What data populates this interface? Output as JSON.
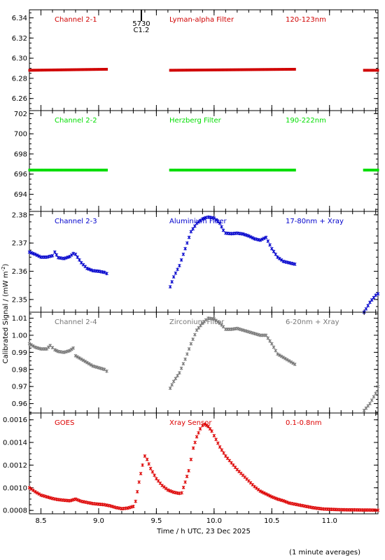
{
  "figure": {
    "ylabel": "Calibrated Signal / (mW m",
    "ylabel_sup": "-2",
    "ylabel_end": ")",
    "xlabel": "Time / h UTC, 23 Dec 2025",
    "footnote": "(1 minute averages)",
    "flare_marker": {
      "time": 9.37,
      "line1": "5730",
      "line2": "C1.2"
    }
  },
  "chart_data": [
    {
      "type": "scatter",
      "panel": "Channel 2-1",
      "labels": [
        "Channel 2-1",
        "Lyman-alpha Filter",
        "120-123nm"
      ],
      "color": "#d00000",
      "marker": "dense",
      "xlim": [
        8.4,
        11.42
      ],
      "ylim": [
        6.248,
        6.348
      ],
      "yticks": [
        6.26,
        6.28,
        6.3,
        6.32,
        6.34
      ],
      "ytick_labels": [
        "6.26",
        "6.28",
        "6.30",
        "6.32",
        "6.34"
      ],
      "series": [
        {
          "x": [
            8.4,
            9.07
          ],
          "y": [
            6.288,
            6.289
          ]
        },
        {
          "x": [
            9.62,
            10.7
          ],
          "y": [
            6.288,
            6.289
          ]
        },
        {
          "x": [
            11.3,
            11.42
          ],
          "y": [
            6.288,
            6.288
          ]
        }
      ]
    },
    {
      "type": "scatter",
      "panel": "Channel 2-2",
      "labels": [
        "Channel 2-2",
        "Herzberg Filter",
        "190-222nm"
      ],
      "color": "#00dd00",
      "marker": "dense",
      "xlim": [
        8.4,
        11.42
      ],
      "ylim": [
        692.3,
        702.3
      ],
      "yticks": [
        694,
        696,
        698,
        700,
        702
      ],
      "ytick_labels": [
        "694",
        "696",
        "698",
        "700",
        "702"
      ],
      "series": [
        {
          "x": [
            8.4,
            9.07
          ],
          "y": [
            696.4,
            696.4
          ]
        },
        {
          "x": [
            9.62,
            10.7
          ],
          "y": [
            696.4,
            696.4
          ]
        },
        {
          "x": [
            11.3,
            11.42
          ],
          "y": [
            696.4,
            696.4
          ]
        }
      ]
    },
    {
      "type": "scatter",
      "panel": "Channel 2-3",
      "labels": [
        "Channel 2-3",
        "Aluminium Filter",
        "17-80nm + Xray"
      ],
      "color": "#0000cc",
      "marker": "x",
      "xlim": [
        8.4,
        11.42
      ],
      "ylim": [
        2.3455,
        2.3812
      ],
      "yticks": [
        2.35,
        2.36,
        2.37,
        2.38
      ],
      "ytick_labels": [
        "2.35",
        "2.36",
        "2.37",
        "2.38"
      ],
      "series": [
        {
          "x": [
            8.4,
            8.45,
            8.5,
            8.55,
            8.6,
            8.62,
            8.65,
            8.7,
            8.75,
            8.78,
            8.8,
            8.85,
            8.9,
            8.95,
            9.0,
            9.05,
            9.07
          ],
          "y": [
            2.3668,
            2.366,
            2.365,
            2.365,
            2.3655,
            2.3668,
            2.3648,
            2.3645,
            2.3652,
            2.3663,
            2.366,
            2.363,
            2.361,
            2.3602,
            2.36,
            2.3596,
            2.3592
          ]
        },
        {
          "x": [
            9.62,
            9.65,
            9.7,
            9.75,
            9.8,
            9.85,
            9.9,
            9.93,
            9.95,
            10.0,
            10.05,
            10.08,
            10.1,
            10.15,
            10.2,
            10.25,
            10.3,
            10.35,
            10.4,
            10.45,
            10.5,
            10.55,
            10.6,
            10.65,
            10.7
          ],
          "y": [
            2.3545,
            2.358,
            2.362,
            2.368,
            2.374,
            2.377,
            2.3785,
            2.379,
            2.3792,
            2.3788,
            2.377,
            2.3745,
            2.3735,
            2.3733,
            2.3735,
            2.3732,
            2.3725,
            2.3715,
            2.371,
            2.372,
            2.368,
            2.365,
            2.3635,
            2.363,
            2.3625
          ]
        },
        {
          "x": [
            11.3,
            11.35,
            11.4,
            11.42
          ],
          "y": [
            2.3455,
            2.349,
            2.3515,
            2.352
          ]
        }
      ]
    },
    {
      "type": "scatter",
      "panel": "Channel 2-4",
      "labels": [
        "Channel 2-4",
        "Zirconium Filter",
        "6-20nm + Xray"
      ],
      "color": "#777777",
      "marker": "x",
      "xlim": [
        8.4,
        11.42
      ],
      "ylim": [
        0.9545,
        1.0135
      ],
      "yticks": [
        0.96,
        0.97,
        0.98,
        0.99,
        1.0,
        1.01
      ],
      "ytick_labels": [
        "0.96",
        "0.97",
        "0.98",
        "0.99",
        "1.00",
        "1.01"
      ],
      "series": [
        {
          "x": [
            8.4,
            8.45,
            8.5,
            8.55,
            8.58,
            8.62,
            8.65,
            8.7,
            8.75,
            8.78,
            8.8,
            8.85,
            8.9,
            8.95,
            9.0,
            9.05,
            9.07
          ],
          "y": [
            0.995,
            0.993,
            0.992,
            0.992,
            0.994,
            0.9915,
            0.9905,
            0.99,
            0.991,
            0.9925,
            0.988,
            0.986,
            0.984,
            0.982,
            0.981,
            0.98,
            0.979
          ]
        },
        {
          "x": [
            9.62,
            9.65,
            9.7,
            9.75,
            9.8,
            9.85,
            9.9,
            9.93,
            9.95,
            10.0,
            10.05,
            10.08,
            10.1,
            10.15,
            10.2,
            10.25,
            10.3,
            10.35,
            10.4,
            10.45,
            10.5,
            10.55,
            10.6,
            10.65,
            10.7
          ],
          "y": [
            0.969,
            0.973,
            0.978,
            0.986,
            0.995,
            1.003,
            1.007,
            1.009,
            1.01,
            1.0095,
            1.007,
            1.005,
            1.0035,
            1.0035,
            1.004,
            1.003,
            1.002,
            1.001,
            1.0,
            1.0,
            0.995,
            0.989,
            0.987,
            0.985,
            0.983
          ]
        },
        {
          "x": [
            11.3,
            11.35,
            11.4,
            11.42
          ],
          "y": [
            0.956,
            0.96,
            0.966,
            0.97
          ]
        }
      ]
    },
    {
      "type": "scatter",
      "panel": "GOES",
      "labels": [
        "GOES",
        "Xray Sensor",
        "0.1-0.8nm"
      ],
      "color": "#dd0000",
      "marker": "x",
      "xlim": [
        8.4,
        11.42
      ],
      "ylim": [
        0.00077,
        0.00166
      ],
      "yticks": [
        0.0008,
        0.001,
        0.0012,
        0.0014,
        0.0016
      ],
      "ytick_labels": [
        "0.0008",
        "0.0010",
        "0.0012",
        "0.0014",
        "0.0016"
      ],
      "series": [
        {
          "x": [
            8.4,
            8.45,
            8.5,
            8.55,
            8.6,
            8.65,
            8.7,
            8.75,
            8.8,
            8.85,
            8.9,
            8.95,
            9.0,
            9.05,
            9.1,
            9.15,
            9.2,
            9.25,
            9.3,
            9.32,
            9.35,
            9.38,
            9.4,
            9.42,
            9.45,
            9.5,
            9.55,
            9.6,
            9.65,
            9.7,
            9.72,
            9.75,
            9.78,
            9.8,
            9.82,
            9.85,
            9.88,
            9.9,
            9.92,
            9.95,
            9.98,
            10.0,
            10.05,
            10.1,
            10.15,
            10.2,
            10.25,
            10.3,
            10.35,
            10.4,
            10.45,
            10.5,
            10.55,
            10.6,
            10.65,
            10.7,
            10.75,
            10.8,
            10.85,
            10.9,
            10.95,
            11.0,
            11.05,
            11.1,
            11.15,
            11.2,
            11.25,
            11.3,
            11.35,
            11.4,
            11.42
          ],
          "y": [
            0.001,
            0.000965,
            0.000935,
            0.00092,
            0.000905,
            0.000895,
            0.00089,
            0.000885,
            0.0009,
            0.00088,
            0.00087,
            0.00086,
            0.000855,
            0.00085,
            0.00084,
            0.000825,
            0.000815,
            0.00082,
            0.000835,
            0.00088,
            0.00105,
            0.0012,
            0.00128,
            0.00125,
            0.00117,
            0.00108,
            0.00102,
            0.00098,
            0.00096,
            0.00095,
            0.000955,
            0.00105,
            0.00115,
            0.00125,
            0.00135,
            0.00145,
            0.00152,
            0.00155,
            0.00156,
            0.00154,
            0.0015,
            0.00146,
            0.00136,
            0.00128,
            0.00122,
            0.00116,
            0.00111,
            0.00106,
            0.00101,
            0.00097,
            0.000945,
            0.00092,
            0.0009,
            0.000885,
            0.000865,
            0.000855,
            0.000845,
            0.000835,
            0.000825,
            0.000818,
            0.000812,
            0.00081,
            0.000808,
            0.000806,
            0.000805,
            0.000805,
            0.000804,
            0.000803,
            0.000803,
            0.000802,
            0.000802
          ]
        }
      ]
    }
  ],
  "xaxis": {
    "ticks": [
      8.5,
      9.0,
      9.5,
      10.0,
      10.5,
      11.0
    ],
    "tick_labels": [
      "8.5",
      "9.0",
      "9.5",
      "10.0",
      "10.5",
      "11.0"
    ]
  }
}
